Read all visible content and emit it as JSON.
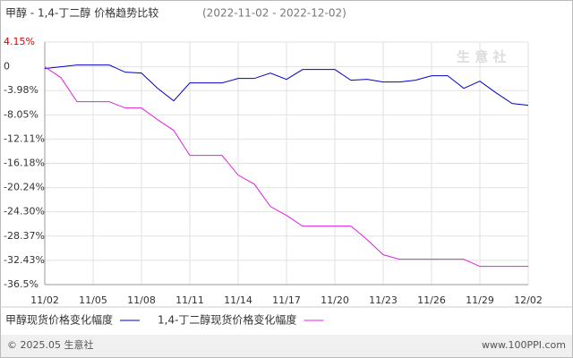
{
  "chart_data": {
    "type": "line",
    "title": "甲醇 - 1,4-丁二醇 价格趋势比较",
    "subtitle": "(2022-11-02 - 2022-12-02)",
    "categories": [
      "11/02",
      null,
      null,
      "11/05",
      null,
      null,
      "11/08",
      null,
      null,
      "11/11",
      null,
      null,
      "11/14",
      null,
      null,
      "11/17",
      null,
      null,
      "11/20",
      null,
      null,
      "11/23",
      null,
      null,
      "11/26",
      null,
      null,
      "11/29",
      null,
      null,
      "12/02"
    ],
    "series": [
      {
        "name": "甲醇现货价格变化幅度",
        "color": "#0000cc",
        "values": [
          -0.3,
          0,
          0.3,
          0.3,
          0.3,
          -0.9,
          -1.05,
          -3.6,
          -5.7,
          -2.7,
          -2.7,
          -2.7,
          -1.95,
          -1.95,
          -1.05,
          -2.1,
          -0.45,
          -0.45,
          -0.45,
          -2.25,
          -2.1,
          -2.55,
          -2.55,
          -2.25,
          -1.5,
          -1.5,
          -3.6,
          -2.4,
          -4.35,
          -6.15,
          -6.45
        ]
      },
      {
        "name": "1,4-丁二醇现货价格变化幅度",
        "color": "#e020e0",
        "values": [
          0,
          -1.8,
          -5.85,
          -5.85,
          -5.85,
          -6.9,
          -6.9,
          -8.85,
          -10.65,
          -14.85,
          -14.85,
          -14.85,
          -18.15,
          -19.65,
          -23.4,
          -24.9,
          -26.7,
          -26.7,
          -26.7,
          -26.7,
          -28.95,
          -31.5,
          -32.25,
          -32.25,
          -32.25,
          -32.25,
          -32.25,
          -33.45,
          -33.45,
          -33.45,
          -33.45
        ]
      }
    ],
    "ylim": [
      -36.5,
      4.15
    ],
    "yticks": [
      {
        "value": 4.15,
        "label": "4.15%"
      },
      0,
      {
        "value": -3.98,
        "label": "-3.98%"
      },
      {
        "value": -8.05,
        "label": "-8.05%"
      },
      {
        "value": -12.11,
        "label": "-12.11%"
      },
      {
        "value": -16.18,
        "label": "-16.18%"
      },
      {
        "value": -20.24,
        "label": "-20.24%"
      },
      {
        "value": -24.3,
        "label": "-24.30%"
      },
      {
        "value": -28.37,
        "label": "-28.37%"
      },
      {
        "value": -32.43,
        "label": "-32.43%"
      },
      {
        "value": -36.5,
        "label": "-36.5%"
      }
    ],
    "grid": true,
    "watermark": "生 意 社",
    "footer_left": "© 2025.05 生意社",
    "footer_right": "www.100PPI.com"
  }
}
